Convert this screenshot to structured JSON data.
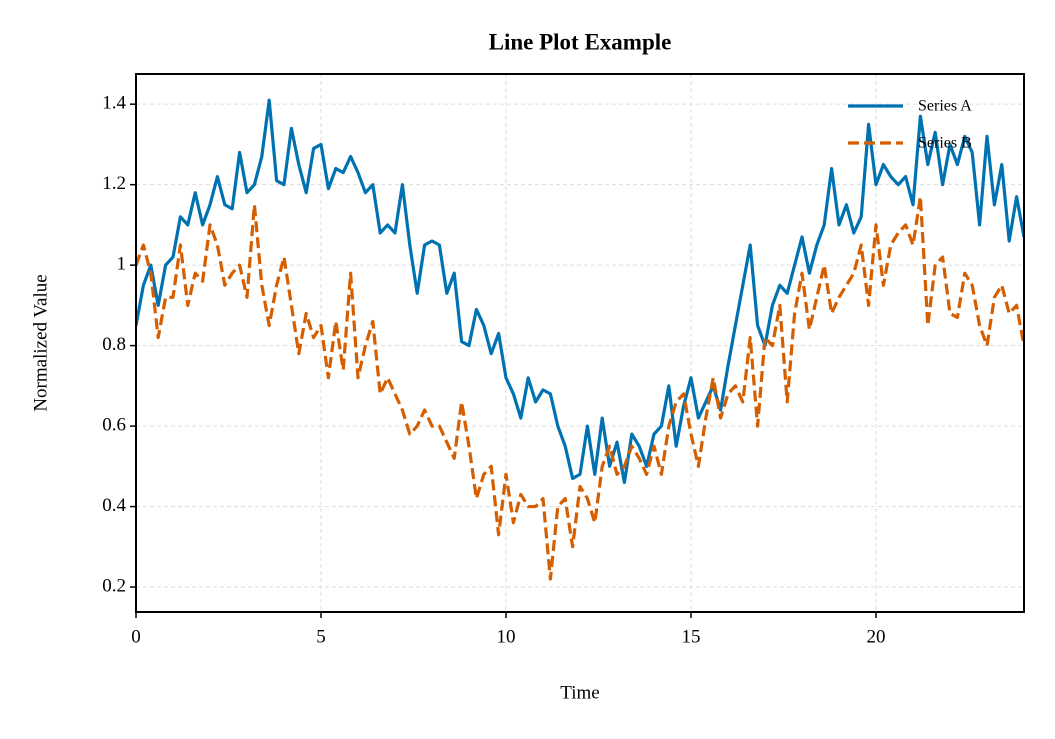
{
  "chart_data": {
    "type": "line",
    "title": "Line Plot Example",
    "x_label": "Time",
    "y_label": "Normalized Value",
    "x": [
      0,
      0.2,
      0.4,
      0.6,
      0.8,
      1,
      1.2,
      1.4,
      1.6,
      1.8,
      2,
      2.2,
      2.4,
      2.6,
      2.8,
      3,
      3.2,
      3.4,
      3.6,
      3.8,
      4,
      4.2,
      4.4,
      4.6,
      4.8,
      5,
      5.2,
      5.4,
      5.6,
      5.8,
      6,
      6.2,
      6.4,
      6.6,
      6.8,
      7,
      7.2,
      7.4,
      7.6,
      7.8,
      8,
      8.2,
      8.4,
      8.6,
      8.8,
      9,
      9.2,
      9.4,
      9.6,
      9.8,
      10,
      10.2,
      10.4,
      10.6,
      10.8,
      11,
      11.2,
      11.4,
      11.6,
      11.8,
      12,
      12.2,
      12.4,
      12.6,
      12.8,
      13,
      13.2,
      13.4,
      13.6,
      13.8,
      14,
      14.2,
      14.4,
      14.6,
      14.8,
      15,
      15.2,
      15.4,
      15.6,
      15.8,
      16,
      16.2,
      16.4,
      16.6,
      16.8,
      17,
      17.2,
      17.4,
      17.6,
      17.8,
      18,
      18.2,
      18.4,
      18.6,
      18.8,
      19,
      19.2,
      19.4,
      19.6,
      19.8,
      20,
      20.2,
      20.4,
      20.6,
      20.8,
      21,
      21.2,
      21.4,
      21.6,
      21.8,
      22,
      22.2,
      22.4,
      22.6,
      22.8,
      23,
      23.2,
      23.4,
      23.6,
      23.8,
      24
    ],
    "series": [
      {
        "name": "Series A",
        "color": "#0072b2",
        "dash": false,
        "values": [
          0.85,
          0.95,
          1.0,
          0.9,
          1.0,
          1.02,
          1.12,
          1.1,
          1.18,
          1.1,
          1.15,
          1.22,
          1.15,
          1.14,
          1.28,
          1.18,
          1.2,
          1.27,
          1.41,
          1.21,
          1.2,
          1.34,
          1.25,
          1.18,
          1.29,
          1.3,
          1.19,
          1.24,
          1.23,
          1.27,
          1.23,
          1.18,
          1.2,
          1.08,
          1.1,
          1.08,
          1.2,
          1.05,
          0.93,
          1.05,
          1.06,
          1.05,
          0.93,
          0.98,
          0.81,
          0.8,
          0.89,
          0.85,
          0.78,
          0.83,
          0.72,
          0.68,
          0.62,
          0.72,
          0.66,
          0.69,
          0.68,
          0.6,
          0.55,
          0.47,
          0.48,
          0.6,
          0.48,
          0.62,
          0.5,
          0.56,
          0.46,
          0.58,
          0.55,
          0.5,
          0.58,
          0.6,
          0.7,
          0.55,
          0.65,
          0.72,
          0.62,
          0.66,
          0.7,
          0.64,
          0.75,
          0.85,
          0.95,
          1.05,
          0.85,
          0.8,
          0.9,
          0.95,
          0.93,
          1.0,
          1.07,
          0.98,
          1.05,
          1.1,
          1.24,
          1.1,
          1.15,
          1.08,
          1.12,
          1.35,
          1.2,
          1.25,
          1.22,
          1.2,
          1.22,
          1.15,
          1.37,
          1.25,
          1.33,
          1.2,
          1.3,
          1.25,
          1.32,
          1.28,
          1.1,
          1.32,
          1.15,
          1.25,
          1.06,
          1.17,
          1.07
        ]
      },
      {
        "name": "Series B",
        "color": "#d55e00",
        "dash": true,
        "values": [
          1.0,
          1.05,
          0.98,
          0.82,
          0.92,
          0.92,
          1.05,
          0.9,
          0.98,
          0.96,
          1.1,
          1.05,
          0.95,
          0.98,
          1.0,
          0.92,
          1.15,
          0.95,
          0.85,
          0.95,
          1.02,
          0.9,
          0.78,
          0.88,
          0.82,
          0.85,
          0.72,
          0.86,
          0.74,
          0.98,
          0.72,
          0.8,
          0.86,
          0.68,
          0.72,
          0.68,
          0.64,
          0.58,
          0.6,
          0.64,
          0.6,
          0.6,
          0.56,
          0.52,
          0.66,
          0.55,
          0.42,
          0.48,
          0.5,
          0.33,
          0.48,
          0.36,
          0.43,
          0.4,
          0.4,
          0.42,
          0.22,
          0.4,
          0.42,
          0.3,
          0.45,
          0.42,
          0.36,
          0.5,
          0.55,
          0.48,
          0.5,
          0.55,
          0.52,
          0.48,
          0.55,
          0.48,
          0.6,
          0.66,
          0.68,
          0.58,
          0.5,
          0.62,
          0.72,
          0.62,
          0.68,
          0.7,
          0.66,
          0.82,
          0.6,
          0.82,
          0.8,
          0.9,
          0.66,
          0.88,
          0.98,
          0.84,
          0.92,
          1.0,
          0.88,
          0.92,
          0.95,
          0.98,
          1.05,
          0.9,
          1.1,
          0.95,
          1.05,
          1.08,
          1.1,
          1.05,
          1.17,
          0.85,
          1.0,
          1.02,
          0.88,
          0.87,
          0.98,
          0.95,
          0.85,
          0.8,
          0.92,
          0.95,
          0.88,
          0.9,
          0.8
        ]
      }
    ],
    "xlim": [
      0,
      24
    ],
    "ylim": [
      0.138,
      1.475
    ],
    "xticks": [
      0,
      5,
      10,
      15,
      20
    ],
    "yticks": [
      0.2,
      0.4,
      0.6,
      0.8,
      1.0,
      1.2,
      1.4
    ],
    "grid": true,
    "legend": "upper right"
  }
}
